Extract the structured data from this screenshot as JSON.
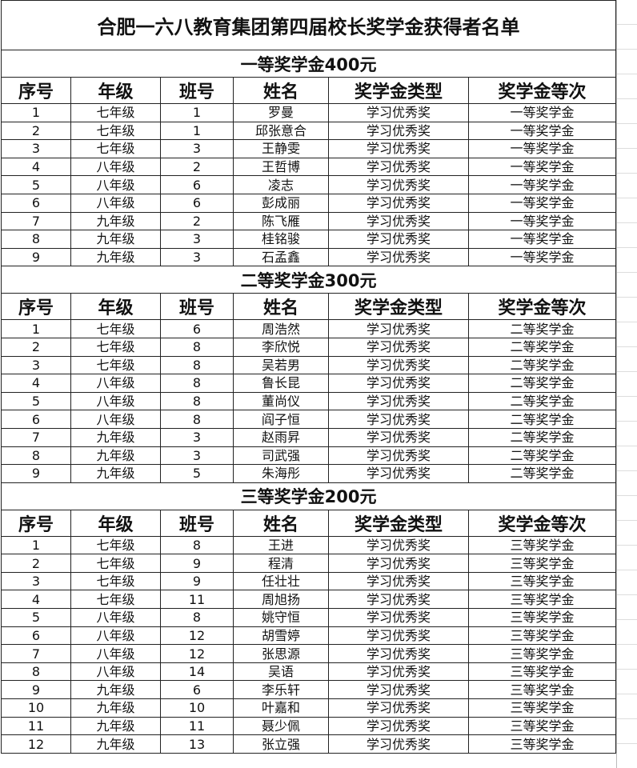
{
  "title": "合肥一六八教育集团第四届校长奖学金获得者名单",
  "columns": [
    "序号",
    "年级",
    "班号",
    "姓名",
    "奖学金类型",
    "奖学金等次"
  ],
  "sections": [
    {
      "heading": "一等奖学金400元",
      "rows": [
        [
          "1",
          "七年级",
          "1",
          "罗曼",
          "学习优秀奖",
          "一等奖学金"
        ],
        [
          "2",
          "七年级",
          "1",
          "邱张意合",
          "学习优秀奖",
          "一等奖学金"
        ],
        [
          "3",
          "七年级",
          "3",
          "王静雯",
          "学习优秀奖",
          "一等奖学金"
        ],
        [
          "4",
          "八年级",
          "2",
          "王哲博",
          "学习优秀奖",
          "一等奖学金"
        ],
        [
          "5",
          "八年级",
          "6",
          "凌志",
          "学习优秀奖",
          "一等奖学金"
        ],
        [
          "6",
          "八年级",
          "6",
          "彭成丽",
          "学习优秀奖",
          "一等奖学金"
        ],
        [
          "7",
          "九年级",
          "2",
          "陈飞雁",
          "学习优秀奖",
          "一等奖学金"
        ],
        [
          "8",
          "九年级",
          "3",
          "桂铭骏",
          "学习优秀奖",
          "一等奖学金"
        ],
        [
          "9",
          "九年级",
          "3",
          "石孟鑫",
          "学习优秀奖",
          "一等奖学金"
        ]
      ]
    },
    {
      "heading": "二等奖学金300元",
      "rows": [
        [
          "1",
          "七年级",
          "6",
          "周浩然",
          "学习优秀奖",
          "二等奖学金"
        ],
        [
          "2",
          "七年级",
          "8",
          "李欣悦",
          "学习优秀奖",
          "二等奖学金"
        ],
        [
          "3",
          "七年级",
          "8",
          "吴若男",
          "学习优秀奖",
          "二等奖学金"
        ],
        [
          "4",
          "八年级",
          "8",
          "鲁长昆",
          "学习优秀奖",
          "二等奖学金"
        ],
        [
          "5",
          "八年级",
          "8",
          "董尚仪",
          "学习优秀奖",
          "二等奖学金"
        ],
        [
          "6",
          "八年级",
          "8",
          "阎子恒",
          "学习优秀奖",
          "二等奖学金"
        ],
        [
          "7",
          "九年级",
          "3",
          "赵雨昇",
          "学习优秀奖",
          "二等奖学金"
        ],
        [
          "8",
          "九年级",
          "3",
          "司武强",
          "学习优秀奖",
          "二等奖学金"
        ],
        [
          "9",
          "九年级",
          "5",
          "朱海彤",
          "学习优秀奖",
          "二等奖学金"
        ]
      ]
    },
    {
      "heading": "三等奖学金200元",
      "rows": [
        [
          "1",
          "七年级",
          "8",
          "王进",
          "学习优秀奖",
          "三等奖学金"
        ],
        [
          "2",
          "七年级",
          "9",
          "程清",
          "学习优秀奖",
          "三等奖学金"
        ],
        [
          "3",
          "七年级",
          "9",
          "任壮壮",
          "学习优秀奖",
          "三等奖学金"
        ],
        [
          "4",
          "七年级",
          "11",
          "周旭扬",
          "学习优秀奖",
          "三等奖学金"
        ],
        [
          "5",
          "八年级",
          "8",
          "姚守恒",
          "学习优秀奖",
          "三等奖学金"
        ],
        [
          "6",
          "八年级",
          "12",
          "胡雪婷",
          "学习优秀奖",
          "三等奖学金"
        ],
        [
          "7",
          "八年级",
          "12",
          "张思源",
          "学习优秀奖",
          "三等奖学金"
        ],
        [
          "8",
          "八年级",
          "14",
          "吴语",
          "学习优秀奖",
          "三等奖学金"
        ],
        [
          "9",
          "九年级",
          "6",
          "李乐轩",
          "学习优秀奖",
          "三等奖学金"
        ],
        [
          "10",
          "九年级",
          "10",
          "叶嘉和",
          "学习优秀奖",
          "三等奖学金"
        ],
        [
          "11",
          "九年级",
          "11",
          "聂少佩",
          "学习优秀奖",
          "三等奖学金"
        ],
        [
          "12",
          "九年级",
          "13",
          "张立强",
          "学习优秀奖",
          "三等奖学金"
        ]
      ]
    }
  ]
}
